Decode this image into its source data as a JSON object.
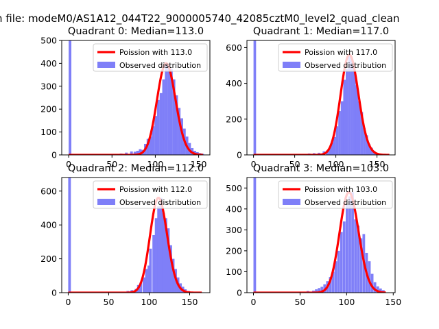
{
  "figure": {
    "supertitle": "n file: modeM0/AS1A12_044T22_9000005740_42085cztM0_level2_quad_clean"
  },
  "colors": {
    "histogram": "#7f7ff8",
    "poisson": "#ff0000",
    "axes": "#000000"
  },
  "chart_data": [
    {
      "type": "bar",
      "title": "Quadrant 0: Median=113.0",
      "xlim": [
        -8,
        163
      ],
      "ylim": [
        0,
        500
      ],
      "xticks": [
        0,
        50,
        100,
        150
      ],
      "yticks": [
        0,
        100,
        200,
        300,
        400,
        500
      ],
      "legend": {
        "placement": "top-right",
        "entries": [
          "Poission with 113.0",
          "Observed distribution"
        ]
      },
      "series": [
        {
          "name": "Observed distribution",
          "type": "histogram",
          "bin_width": 3.1,
          "bins": [
            [
              0,
              500
            ],
            [
              59,
              6
            ],
            [
              65,
              10
            ],
            [
              71,
              15
            ],
            [
              75,
              14
            ],
            [
              78,
              18
            ],
            [
              81,
              25
            ],
            [
              84,
              22
            ],
            [
              87,
              48
            ],
            [
              90,
              70
            ],
            [
              93,
              80
            ],
            [
              96,
              125
            ],
            [
              99,
              170
            ],
            [
              102,
              240
            ],
            [
              105,
              270
            ],
            [
              108,
              330
            ],
            [
              111,
              400
            ],
            [
              114,
              395
            ],
            [
              117,
              375
            ],
            [
              120,
              330
            ],
            [
              123,
              260
            ],
            [
              126,
              205
            ],
            [
              129,
              160
            ],
            [
              132,
              115
            ],
            [
              135,
              80
            ],
            [
              138,
              52
            ],
            [
              141,
              30
            ],
            [
              144,
              18
            ],
            [
              147,
              12
            ],
            [
              150,
              8
            ],
            [
              153,
              5
            ]
          ]
        },
        {
          "name": "Poission with 113.0",
          "type": "line",
          "mean": 113.0,
          "x_range": [
            0,
            155
          ]
        }
      ]
    },
    {
      "type": "bar",
      "title": "Quadrant 1: Median=117.0",
      "xlim": [
        -8,
        172
      ],
      "ylim": [
        0,
        640
      ],
      "xticks": [
        0,
        50,
        100,
        150
      ],
      "yticks": [
        0,
        200,
        400,
        600
      ],
      "legend": {
        "placement": "top-right",
        "entries": [
          "Poission with 117.0",
          "Observed distribution"
        ]
      },
      "series": [
        {
          "name": "Observed distribution",
          "type": "histogram",
          "bin_width": 3.1,
          "bins": [
            [
              0,
              640
            ],
            [
              66,
              8
            ],
            [
              72,
              10
            ],
            [
              78,
              12
            ],
            [
              84,
              20
            ],
            [
              88,
              25
            ],
            [
              91,
              40
            ],
            [
              94,
              70
            ],
            [
              97,
              100
            ],
            [
              100,
              160
            ],
            [
              103,
              245
            ],
            [
              106,
              300
            ],
            [
              109,
              420
            ],
            [
              112,
              480
            ],
            [
              115,
              560
            ],
            [
              118,
              530
            ],
            [
              121,
              480
            ],
            [
              124,
              390
            ],
            [
              127,
              300
            ],
            [
              130,
              240
            ],
            [
              133,
              150
            ],
            [
              136,
              110
            ],
            [
              139,
              60
            ],
            [
              142,
              40
            ],
            [
              145,
              22
            ],
            [
              148,
              10
            ],
            [
              152,
              5
            ]
          ]
        },
        {
          "name": "Poission with 117.0",
          "type": "line",
          "mean": 117.0,
          "x_range": [
            0,
            165
          ]
        }
      ]
    },
    {
      "type": "bar",
      "title": "Quadrant 2: Median=112.0",
      "xlim": [
        -8,
        175
      ],
      "ylim": [
        0,
        680
      ],
      "xticks": [
        0,
        50,
        100,
        150
      ],
      "yticks": [
        0,
        200,
        400,
        600
      ],
      "legend": {
        "placement": "top-right",
        "entries": [
          "Poission with 112.0",
          "Observed distribution"
        ]
      },
      "series": [
        {
          "name": "Observed distribution",
          "type": "histogram",
          "bin_width": 3.3,
          "bins": [
            [
              0,
              680
            ],
            [
              72,
              10
            ],
            [
              77,
              15
            ],
            [
              82,
              22
            ],
            [
              85,
              45
            ],
            [
              88,
              60
            ],
            [
              92,
              90
            ],
            [
              95,
              140
            ],
            [
              98,
              160
            ],
            [
              100,
              260
            ],
            [
              104,
              340
            ],
            [
              107,
              440
            ],
            [
              110,
              510
            ],
            [
              113,
              560
            ],
            [
              116,
              470
            ],
            [
              119,
              440
            ],
            [
              122,
              380
            ],
            [
              125,
              280
            ],
            [
              128,
              200
            ],
            [
              131,
              140
            ],
            [
              134,
              90
            ],
            [
              137,
              55
            ],
            [
              140,
              35
            ],
            [
              143,
              20
            ],
            [
              147,
              10
            ]
          ]
        },
        {
          "name": "Poission with 112.0",
          "type": "line",
          "mean": 112.0,
          "x_range": [
            0,
            165
          ]
        }
      ]
    },
    {
      "type": "bar",
      "title": "Quadrant 3: Median=103.0",
      "xlim": [
        -7,
        152
      ],
      "ylim": [
        0,
        550
      ],
      "xticks": [
        0,
        50,
        100,
        150
      ],
      "yticks": [
        0,
        100,
        200,
        300,
        400,
        500
      ],
      "legend": {
        "placement": "top-right",
        "entries": [
          "Poission with 103.0",
          "Observed distribution"
        ]
      },
      "series": [
        {
          "name": "Observed distribution",
          "type": "histogram",
          "bin_width": 2.8,
          "bins": [
            [
              0,
              550
            ],
            [
              57,
              8
            ],
            [
              63,
              10
            ],
            [
              66,
              16
            ],
            [
              69,
              22
            ],
            [
              72,
              28
            ],
            [
              75,
              40
            ],
            [
              78,
              55
            ],
            [
              81,
              75
            ],
            [
              84,
              100
            ],
            [
              87,
              150
            ],
            [
              90,
              200
            ],
            [
              93,
              290
            ],
            [
              96,
              340
            ],
            [
              99,
              420
            ],
            [
              102,
              460
            ],
            [
              105,
              480
            ],
            [
              108,
              350
            ],
            [
              111,
              320
            ],
            [
              114,
              260
            ],
            [
              117,
              280
            ],
            [
              120,
              190
            ],
            [
              123,
              150
            ],
            [
              126,
              90
            ],
            [
              129,
              50
            ],
            [
              132,
              30
            ],
            [
              135,
              20
            ],
            [
              138,
              12
            ]
          ]
        },
        {
          "name": "Poission with 103.0",
          "type": "line",
          "mean": 103.0,
          "x_range": [
            0,
            142
          ]
        }
      ]
    }
  ]
}
